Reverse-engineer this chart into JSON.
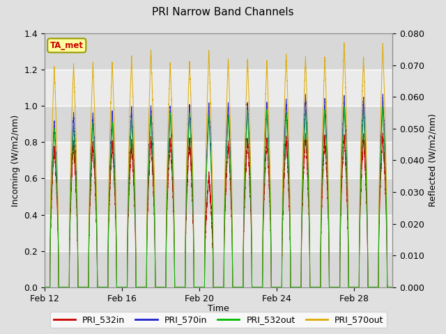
{
  "title": "PRI Narrow Band Channels",
  "xlabel": "Time",
  "ylabel_left": "Incoming (W/m2/nm)",
  "ylabel_right": "Reflected (W/m2/nm)",
  "annotation_label": "TA_met",
  "legend_entries": [
    "PRI_532in",
    "PRI_570in",
    "PRI_532out",
    "PRI_570out"
  ],
  "legend_colors": [
    "#cc0000",
    "#2222cc",
    "#00bb00",
    "#ddaa00"
  ],
  "ylim_left": [
    0.0,
    1.4
  ],
  "ylim_right": [
    0.0,
    0.08
  ],
  "yticks_left": [
    0.0,
    0.2,
    0.4,
    0.6,
    0.8,
    1.0,
    1.2,
    1.4
  ],
  "yticks_right": [
    0.0,
    0.01,
    0.02,
    0.03,
    0.04,
    0.05,
    0.06,
    0.07,
    0.08
  ],
  "x_tick_labels": [
    "Feb 12",
    "Feb 16",
    "Feb 20",
    "Feb 24",
    "Feb 28"
  ],
  "x_tick_positions": [
    0,
    4,
    8,
    12,
    16
  ],
  "xlim": [
    0,
    18
  ],
  "n_days": 18,
  "background_color": "#e0e0e0",
  "plot_bg_color": "#ebebeb",
  "grid_color": "#ffffff",
  "hband_color": "#d0d0d0",
  "peak_532in": [
    0.78,
    0.8,
    0.8,
    0.8,
    0.8,
    0.82,
    0.82,
    0.82,
    0.62,
    0.8,
    0.82,
    0.82,
    0.83,
    0.84,
    0.83,
    0.84,
    0.84,
    0.84
  ],
  "peak_570in": [
    0.92,
    0.96,
    0.96,
    0.97,
    0.99,
    1.0,
    1.0,
    1.01,
    1.01,
    1.02,
    1.02,
    1.02,
    1.04,
    1.06,
    1.04,
    1.06,
    1.05,
    1.06
  ],
  "peak_532out": [
    0.05,
    0.051,
    0.052,
    0.052,
    0.053,
    0.054,
    0.055,
    0.055,
    0.054,
    0.054,
    0.056,
    0.056,
    0.055,
    0.056,
    0.056,
    0.057,
    0.056,
    0.057
  ],
  "peak_570out": [
    1.22,
    1.23,
    1.24,
    1.24,
    1.27,
    1.31,
    1.24,
    1.25,
    1.3,
    1.26,
    1.26,
    1.25,
    1.29,
    1.27,
    1.27,
    1.35,
    1.27,
    1.34
  ]
}
